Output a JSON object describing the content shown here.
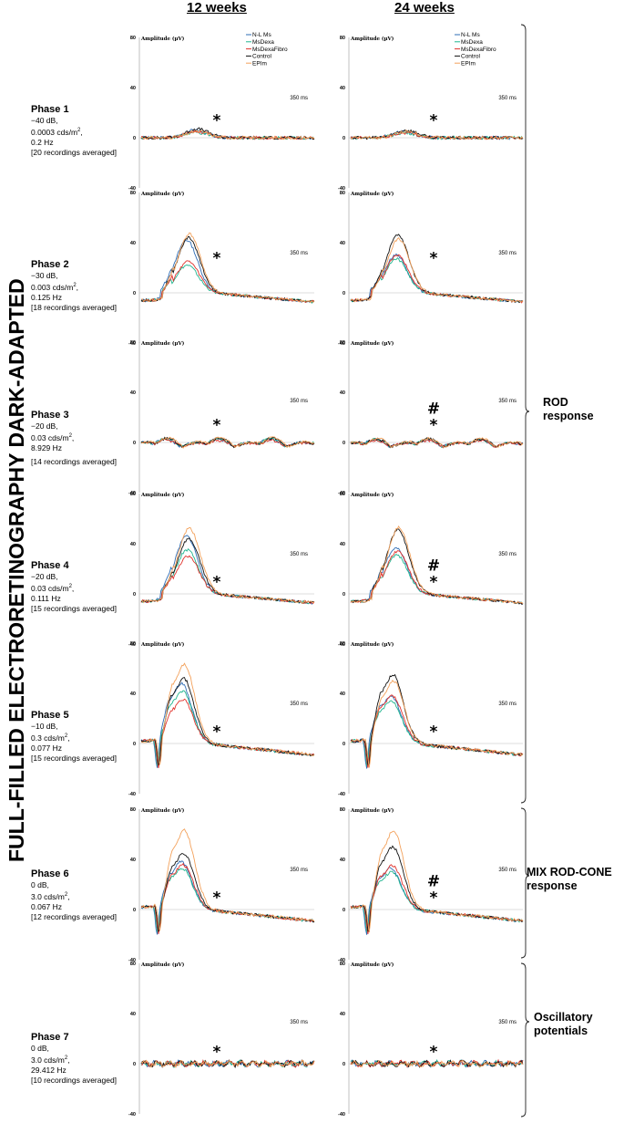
{
  "figure_title": "FULL-FILLED ELECTRORETINOGRAPHY DARK-ADAPTED",
  "columns": [
    "12 weeks",
    "24 weeks"
  ],
  "legend": [
    {
      "name": "N-L Ms",
      "color": "#2f6db5"
    },
    {
      "name": "MsDexa",
      "color": "#1fb58f"
    },
    {
      "name": "MsDexaFibro",
      "color": "#e0312b"
    },
    {
      "name": "Control",
      "color": "#111111"
    },
    {
      "name": "EPIm",
      "color": "#f3a15b"
    }
  ],
  "phases": [
    {
      "name": "Phase 1",
      "lines": [
        "−40 dB,",
        "0.0003 cds/m",
        "0.2 Hz",
        "[20 recordings averaged]"
      ],
      "sup": "2"
    },
    {
      "name": "Phase 2",
      "lines": [
        "−30 dB,",
        "0.003 cds/m",
        "0.125 Hz",
        "[18 recordings averaged]"
      ],
      "sup": "2"
    },
    {
      "name": "Phase 3",
      "lines": [
        "−20 dB,",
        "0.03 cds/m",
        "8.929 Hz",
        "[14 recordings averaged]"
      ],
      "sup": "2"
    },
    {
      "name": "Phase 4",
      "lines": [
        "−20 dB,",
        "0.03 cds/m",
        "0.111 Hz",
        "[15 recordings averaged]"
      ],
      "sup": "2"
    },
    {
      "name": "Phase 5",
      "lines": [
        "−10 dB,",
        "0.3 cds/m",
        "0.077 Hz",
        "[15 recordings averaged]"
      ],
      "sup": "2"
    },
    {
      "name": "Phase 6",
      "lines": [
        "0 dB,",
        "3.0 cds/m",
        "0.067 Hz",
        "[12 recordings averaged]"
      ],
      "sup": "2"
    },
    {
      "name": "Phase 7",
      "lines": [
        "0 dB,",
        "3.0 cds/m",
        "29.412 Hz",
        "[10 recordings averaged]"
      ],
      "sup": "2"
    }
  ],
  "responses": [
    {
      "lines": [
        "ROD",
        "response"
      ]
    },
    {
      "lines": [
        "MIX ROD-CONE",
        "response"
      ]
    },
    {
      "lines": [
        "Oscillatory",
        "potentials"
      ]
    }
  ],
  "chart_data": {
    "type": "line",
    "title": "FULL-FILLED ELECTRORETINOGRAPHY DARK-ADAPTED",
    "ylabel": "Amplitude (µV)",
    "ylim": [
      -40,
      80
    ],
    "yticks": [
      "80",
      "40",
      "0",
      "-40"
    ],
    "time_label": "350 ms",
    "significance": {
      "12 weeks": [
        "*",
        "*",
        "*",
        "*",
        "*",
        "*",
        "*"
      ],
      "24 weeks": [
        "*",
        "*",
        "#*",
        "#*",
        "*",
        "#*",
        "*"
      ]
    },
    "panels_peak_amplitudes_uV": {
      "12 weeks": {
        "Phase 1": {
          "N-L Ms": 6,
          "MsDexa": 4,
          "MsDexaFibro": 5,
          "Control": 7,
          "EPIm": 5
        },
        "Phase 2": {
          "N-L Ms": 42,
          "MsDexa": 22,
          "MsDexaFibro": 25,
          "Control": 44,
          "EPIm": 47
        },
        "Phase 3": {
          "N-L Ms": 10,
          "MsDexa": 10,
          "MsDexaFibro": 8,
          "Control": 11,
          "EPIm": 12
        },
        "Phase 4": {
          "N-L Ms": 46,
          "MsDexa": 35,
          "MsDexaFibro": 30,
          "Control": 44,
          "EPIm": 52
        },
        "Phase 5": {
          "N-L Ms": 48,
          "MsDexa": 42,
          "MsDexaFibro": 35,
          "Control": 52,
          "EPIm": 63
        },
        "Phase 6": {
          "N-L Ms": 38,
          "MsDexa": 33,
          "MsDexaFibro": 36,
          "Control": 45,
          "EPIm": 63
        },
        "Phase 7": {
          "N-L Ms": 1,
          "MsDexa": 1,
          "MsDexaFibro": 1,
          "Control": 1,
          "EPIm": 1
        }
      },
      "24 weeks": {
        "Phase 1": {
          "N-L Ms": 5,
          "MsDexa": 4,
          "MsDexaFibro": 4,
          "Control": 6,
          "EPIm": 5
        },
        "Phase 2": {
          "N-L Ms": 30,
          "MsDexa": 27,
          "MsDexaFibro": 30,
          "Control": 46,
          "EPIm": 43
        },
        "Phase 3": {
          "N-L Ms": 9,
          "MsDexa": 9,
          "MsDexaFibro": 8,
          "Control": 10,
          "EPIm": 11
        },
        "Phase 4": {
          "N-L Ms": 37,
          "MsDexa": 31,
          "MsDexaFibro": 34,
          "Control": 51,
          "EPIm": 53
        },
        "Phase 5": {
          "N-L Ms": 38,
          "MsDexa": 34,
          "MsDexaFibro": 38,
          "Control": 55,
          "EPIm": 50
        },
        "Phase 6": {
          "N-L Ms": 33,
          "MsDexa": 30,
          "MsDexaFibro": 35,
          "Control": 50,
          "EPIm": 63
        },
        "Phase 7": {
          "N-L Ms": 1,
          "MsDexa": 1,
          "MsDexaFibro": 1,
          "Control": 1,
          "EPIm": 1
        }
      }
    }
  }
}
